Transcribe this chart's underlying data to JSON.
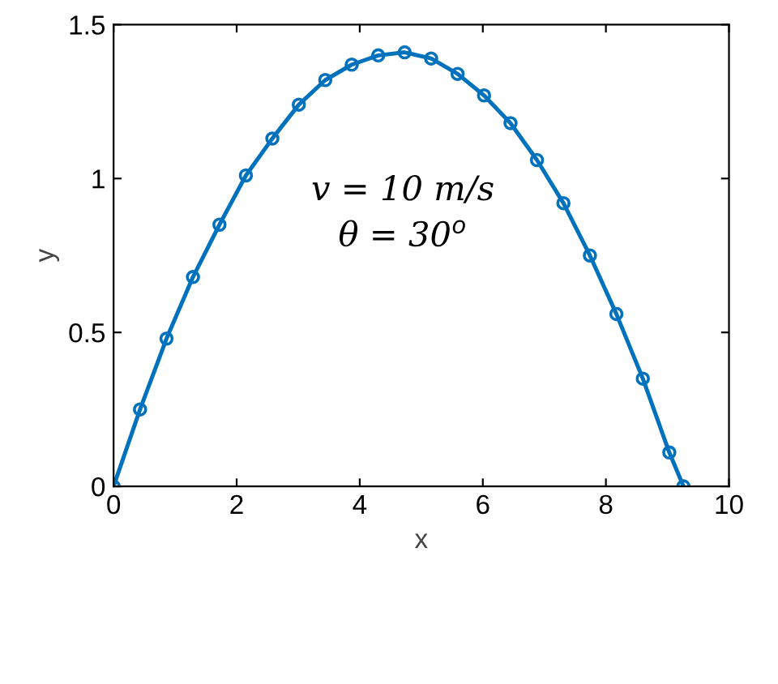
{
  "chart_data": {
    "type": "line",
    "xlabel": "x",
    "ylabel": "y",
    "annotations": [
      "v = 10 m/s",
      "θ = 30$^{o}$"
    ],
    "xlim": [
      0,
      10
    ],
    "xticks": [
      0,
      2,
      4,
      6,
      8,
      10
    ],
    "ylim": [
      0,
      1.5
    ],
    "yticks": [
      0,
      0.5,
      1,
      1.5
    ],
    "marker": "circle",
    "line_style": "solid",
    "grid": false,
    "legend": false,
    "series": [
      {
        "color": "#0072bd",
        "x": [
          0,
          0.43,
          0.86,
          1.29,
          1.72,
          2.15,
          2.58,
          3.01,
          3.44,
          3.87,
          4.3,
          4.73,
          5.16,
          5.59,
          6.02,
          6.45,
          6.88,
          7.31,
          7.74,
          8.17,
          8.6,
          9.03,
          9.26
        ],
        "values": [
          0,
          0.25,
          0.48,
          0.68,
          0.85,
          1.01,
          1.13,
          1.24,
          1.32,
          1.37,
          1.4,
          1.41,
          1.39,
          1.34,
          1.27,
          1.18,
          1.06,
          0.92,
          0.75,
          0.56,
          0.35,
          0.11,
          0
        ]
      }
    ]
  }
}
